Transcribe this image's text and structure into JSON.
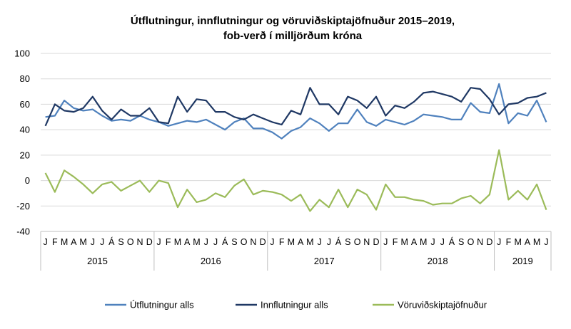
{
  "chart_data": {
    "type": "line",
    "title": "Útflutningur, innflutningur og vöruviðskiptajöfnuður 2015–2019,",
    "subtitle": "fob-verð í milljörðum króna",
    "ylim": [
      -40,
      100
    ],
    "yticks": [
      "100",
      "80",
      "60",
      "40",
      "20",
      "0",
      "-20",
      "-40"
    ],
    "ytick_values": [
      100,
      80,
      60,
      40,
      20,
      0,
      -20,
      -40
    ],
    "months": [
      "J",
      "F",
      "M",
      "A",
      "M",
      "J",
      "J",
      "Á",
      "S",
      "O",
      "N",
      "D"
    ],
    "months_2019": [
      "J",
      "F",
      "M",
      "A",
      "M",
      "J"
    ],
    "years": [
      {
        "label": "2015",
        "count": 12
      },
      {
        "label": "2016",
        "count": 12
      },
      {
        "label": "2017",
        "count": 12
      },
      {
        "label": "2018",
        "count": 12
      },
      {
        "label": "2019",
        "count": 6
      }
    ],
    "series": [
      {
        "name": "Útflutningur alls",
        "color": "#4f81bd",
        "values": [
          50,
          51,
          63,
          57,
          55,
          56,
          51,
          47,
          48,
          47,
          51,
          48,
          46,
          43,
          45,
          47,
          46,
          48,
          44,
          40,
          46,
          49,
          41,
          41,
          38,
          33,
          39,
          42,
          49,
          45,
          39,
          45,
          45,
          56,
          46,
          43,
          48,
          46,
          44,
          47,
          52,
          51,
          50,
          48,
          48,
          61,
          54,
          53,
          76,
          45,
          53,
          51,
          63,
          46
        ]
      },
      {
        "name": "Innflutningur alls",
        "color": "#1f3864",
        "values": [
          43,
          60,
          55,
          54,
          57,
          66,
          55,
          48,
          56,
          51,
          51,
          57,
          46,
          45,
          66,
          54,
          64,
          63,
          54,
          54,
          50,
          48,
          52,
          49,
          46,
          44,
          55,
          52,
          73,
          60,
          60,
          52,
          66,
          63,
          57,
          66,
          51,
          59,
          57,
          62,
          69,
          70,
          68,
          66,
          62,
          73,
          72,
          64,
          52,
          60,
          61,
          65,
          66,
          69
        ]
      },
      {
        "name": "Vöruviðskiptajöfnuður",
        "color": "#9bbb59",
        "values": [
          6,
          -9,
          8,
          3,
          -3,
          -10,
          -3,
          -1,
          -8,
          -4,
          0,
          -9,
          0,
          -2,
          -21,
          -7,
          -17,
          -15,
          -10,
          -13,
          -4,
          1,
          -11,
          -8,
          -9,
          -11,
          -16,
          -11,
          -24,
          -15,
          -21,
          -7,
          -21,
          -7,
          -11,
          -23,
          -3,
          -13,
          -13,
          -15,
          -16,
          -19,
          -18,
          -18,
          -14,
          -12,
          -18,
          -11,
          24,
          -15,
          -8,
          -15,
          -3,
          -23
        ]
      }
    ]
  }
}
